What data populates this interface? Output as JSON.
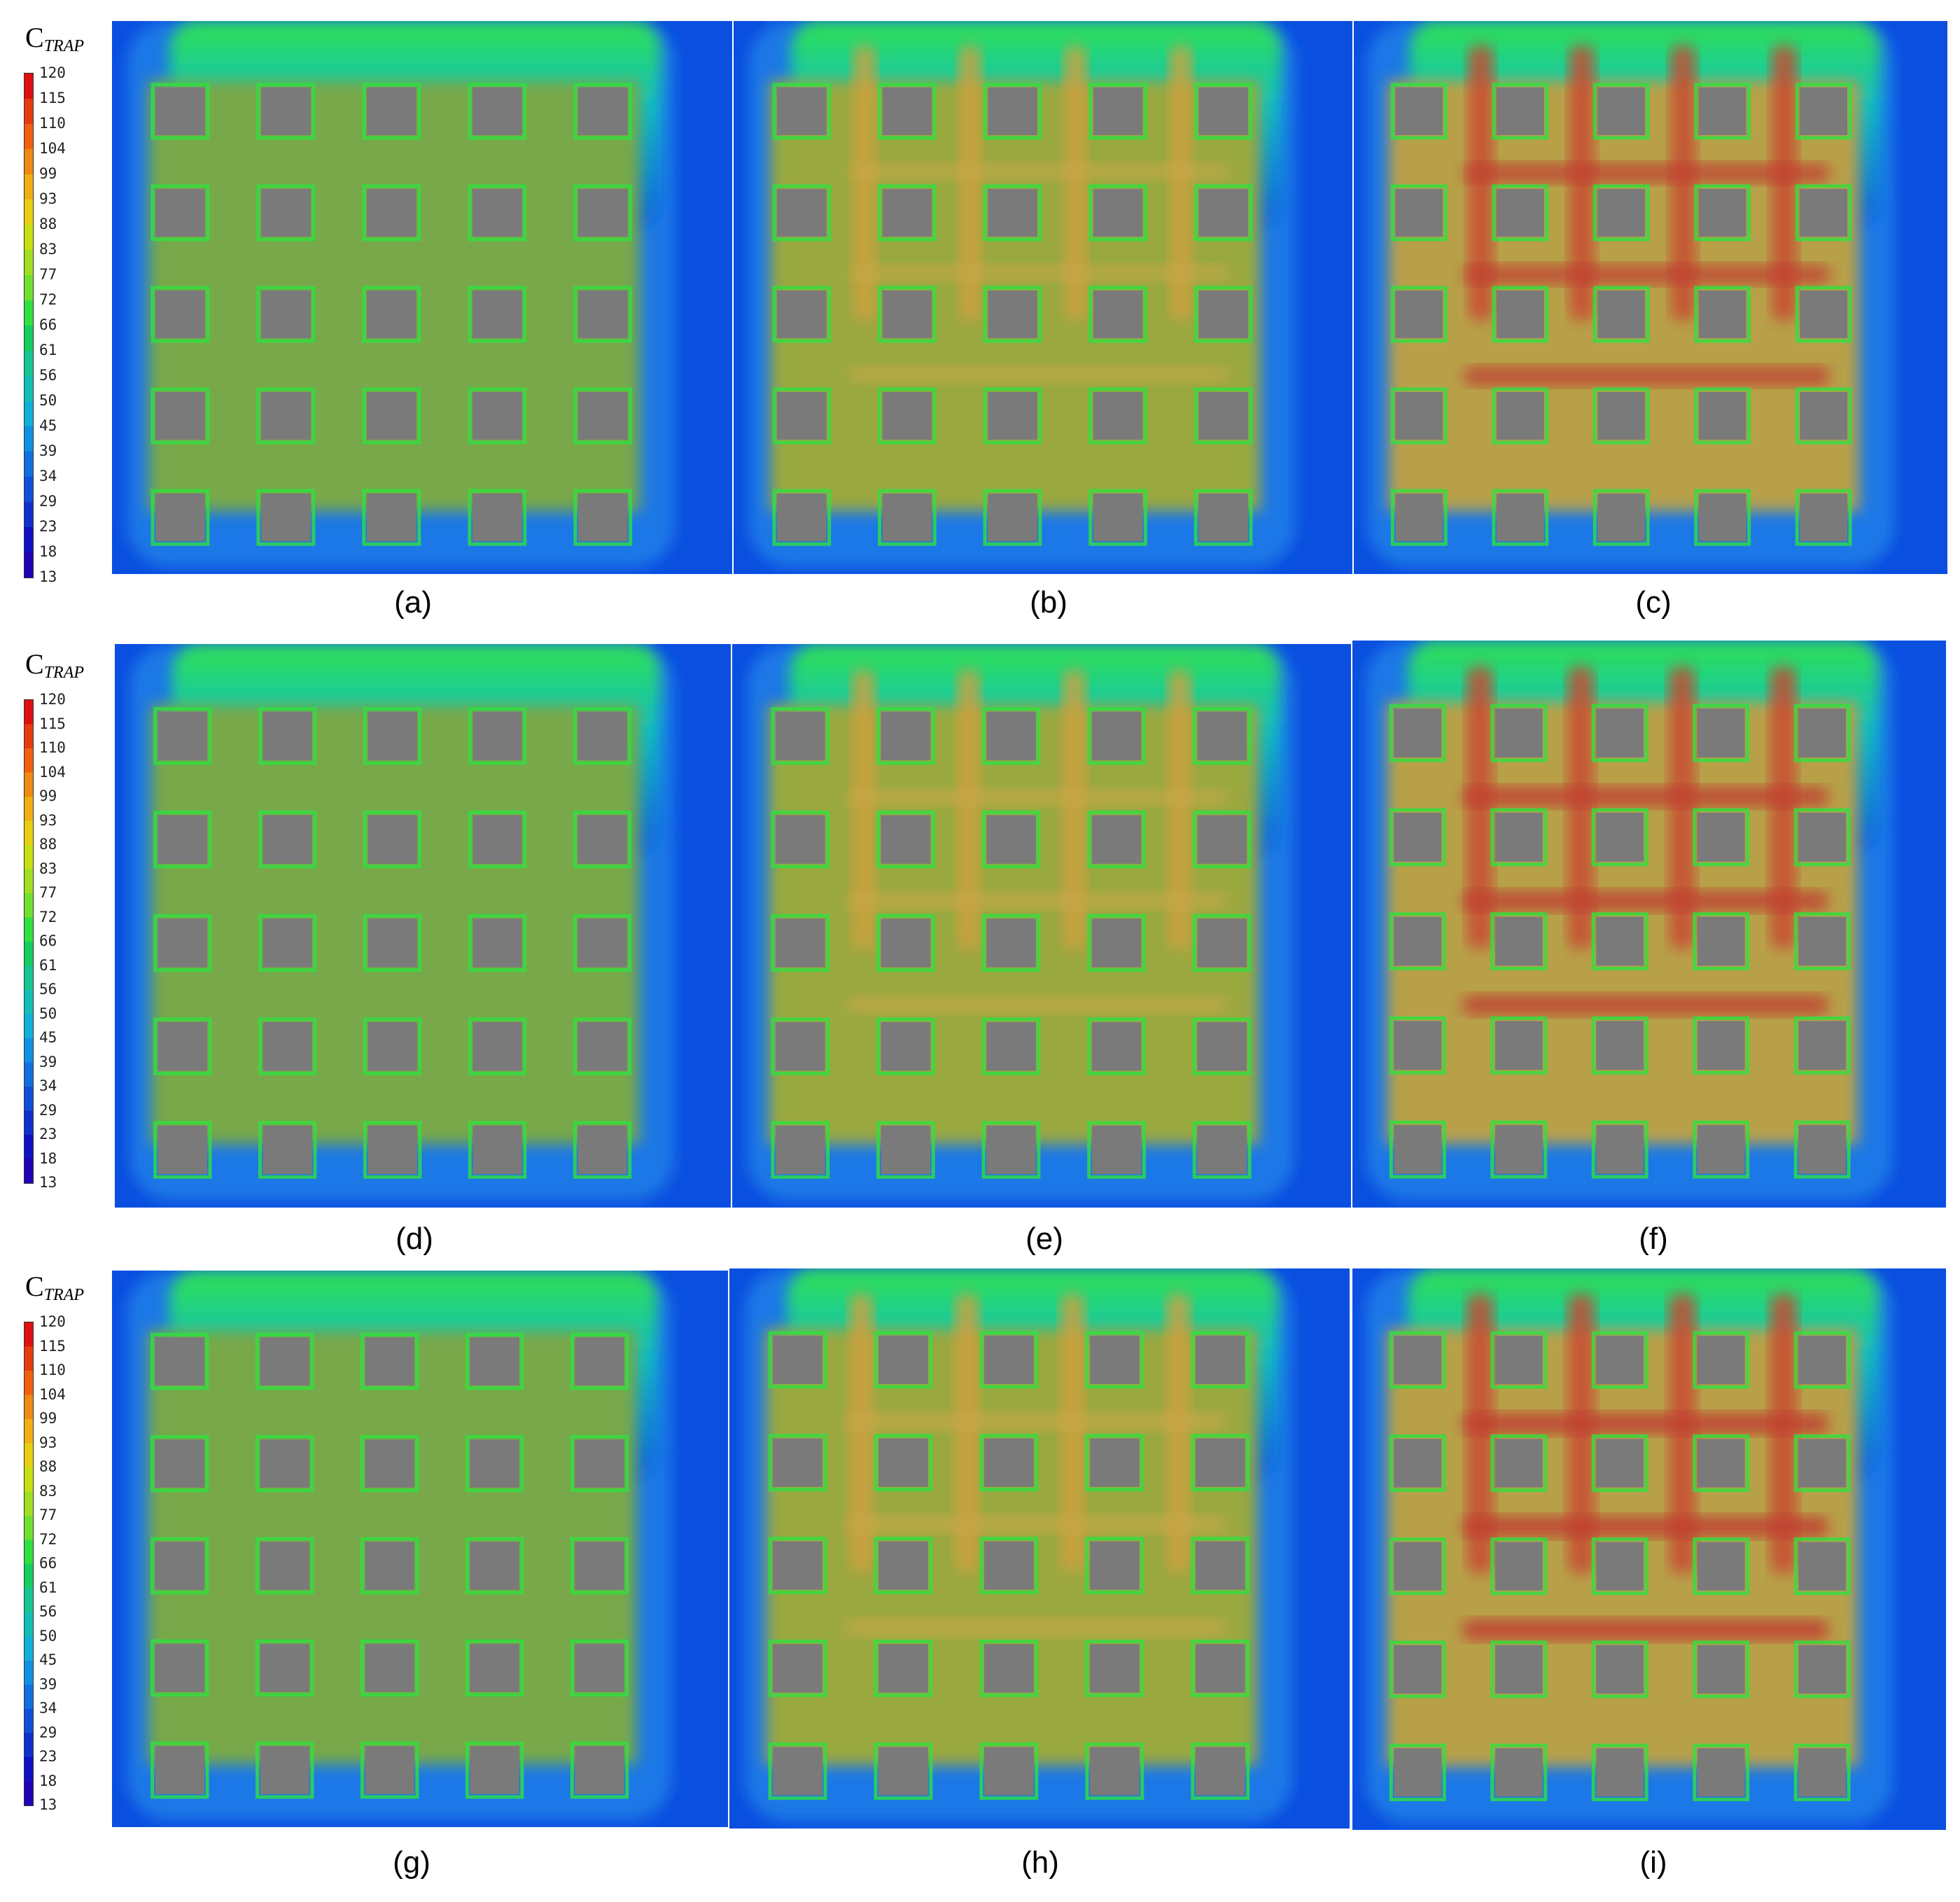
{
  "legend": {
    "title_main": "C",
    "title_sub": "TRAP",
    "ticks": [
      "120",
      "115",
      "110",
      "104",
      "99",
      "93",
      "88",
      "83",
      "77",
      "72",
      "66",
      "61",
      "56",
      "50",
      "45",
      "39",
      "34",
      "29",
      "23",
      "18",
      "13"
    ],
    "colors": [
      "#e01010",
      "#e83a10",
      "#f06010",
      "#f08a10",
      "#f0b010",
      "#e8d010",
      "#c8e010",
      "#a0e020",
      "#70e030",
      "#30e040",
      "#10d060",
      "#10c890",
      "#10c0b8",
      "#10b0d8",
      "#1090e0",
      "#1070e0",
      "#1050d8",
      "#1030d0",
      "#1010c8",
      "#2000b8"
    ]
  },
  "panels": [
    {
      "id": "a",
      "caption": "(a)",
      "level": 0.1
    },
    {
      "id": "b",
      "caption": "(b)",
      "level": 0.35
    },
    {
      "id": "c",
      "caption": "(c)",
      "level": 0.75
    },
    {
      "id": "d",
      "caption": "(d)",
      "level": 0.12
    },
    {
      "id": "e",
      "caption": "(e)",
      "level": 0.42
    },
    {
      "id": "f",
      "caption": "(f)",
      "level": 0.85
    },
    {
      "id": "g",
      "caption": "(g)",
      "level": 0.12
    },
    {
      "id": "h",
      "caption": "(h)",
      "level": 0.55
    },
    {
      "id": "i",
      "caption": "(i)",
      "level": 0.95
    }
  ]
}
